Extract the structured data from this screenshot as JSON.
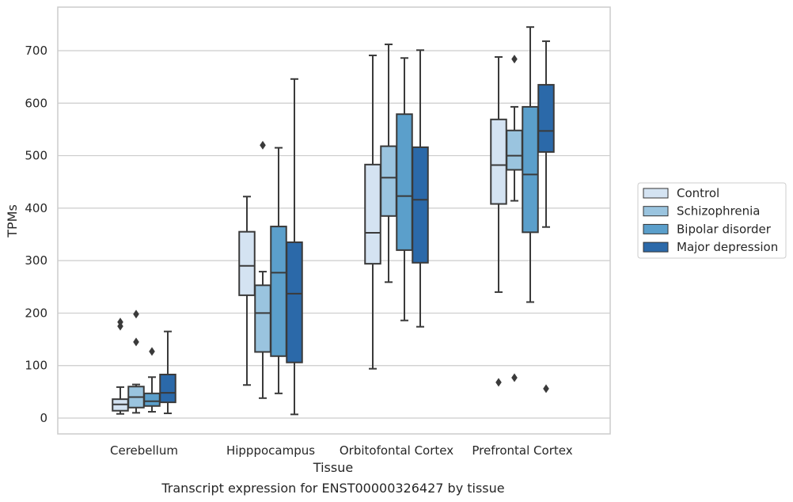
{
  "chart_data": {
    "type": "box",
    "xlabel": "Tissue",
    "ylabel": "TPMs",
    "caption": "Transcript expression for ENST00000326427 by tissue",
    "categories": [
      "Cerebellum",
      "Hipppocampus",
      "Orbitofontal Cortex",
      "Prefrontal Cortex"
    ],
    "ylim": [
      -30,
      780
    ],
    "yticks": [
      0,
      100,
      200,
      300,
      400,
      500,
      600,
      700
    ],
    "grid": "horizontal",
    "legend_position": "right",
    "series": [
      {
        "name": "Control",
        "color": "#d4e3f2",
        "boxes": [
          {
            "whisker_low": 8,
            "q1": 14,
            "median": 26,
            "q3": 36,
            "whisker_high": 59,
            "outliers": [
              175,
              183
            ]
          },
          {
            "whisker_low": 63,
            "q1": 234,
            "median": 290,
            "q3": 355,
            "whisker_high": 422,
            "outliers": []
          },
          {
            "whisker_low": 94,
            "q1": 294,
            "median": 353,
            "q3": 483,
            "whisker_high": 691,
            "outliers": []
          },
          {
            "whisker_low": 240,
            "q1": 408,
            "median": 482,
            "q3": 569,
            "whisker_high": 688,
            "outliers": [
              68
            ]
          }
        ]
      },
      {
        "name": "Schizophrenia",
        "color": "#9ac4df",
        "boxes": [
          {
            "whisker_low": 10,
            "q1": 20,
            "median": 40,
            "q3": 60,
            "whisker_high": 64,
            "outliers": [
              145,
              198
            ]
          },
          {
            "whisker_low": 38,
            "q1": 126,
            "median": 200,
            "q3": 253,
            "whisker_high": 279,
            "outliers": [
              520
            ]
          },
          {
            "whisker_low": 259,
            "q1": 385,
            "median": 458,
            "q3": 518,
            "whisker_high": 712,
            "outliers": []
          },
          {
            "whisker_low": 414,
            "q1": 473,
            "median": 500,
            "q3": 548,
            "whisker_high": 593,
            "outliers": [
              684,
              77
            ]
          }
        ]
      },
      {
        "name": "Bipolar disorder",
        "color": "#5b9fcb",
        "boxes": [
          {
            "whisker_low": 12,
            "q1": 23,
            "median": 32,
            "q3": 47,
            "whisker_high": 78,
            "outliers": [
              127
            ]
          },
          {
            "whisker_low": 47,
            "q1": 118,
            "median": 277,
            "q3": 365,
            "whisker_high": 515,
            "outliers": []
          },
          {
            "whisker_low": 186,
            "q1": 320,
            "median": 423,
            "q3": 579,
            "whisker_high": 686,
            "outliers": []
          },
          {
            "whisker_low": 221,
            "q1": 354,
            "median": 464,
            "q3": 593,
            "whisker_high": 745,
            "outliers": []
          }
        ]
      },
      {
        "name": "Major depression",
        "color": "#2b69a9",
        "boxes": [
          {
            "whisker_low": 9,
            "q1": 30,
            "median": 48,
            "q3": 83,
            "whisker_high": 165,
            "outliers": []
          },
          {
            "whisker_low": 7,
            "q1": 106,
            "median": 237,
            "q3": 335,
            "whisker_high": 646,
            "outliers": []
          },
          {
            "whisker_low": 174,
            "q1": 296,
            "median": 416,
            "q3": 516,
            "whisker_high": 701,
            "outliers": []
          },
          {
            "whisker_low": 364,
            "q1": 507,
            "median": 547,
            "q3": 635,
            "whisker_high": 718,
            "outliers": [
              56
            ]
          }
        ]
      }
    ]
  }
}
